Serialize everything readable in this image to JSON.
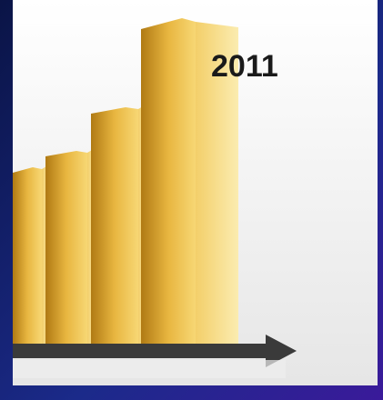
{
  "label": "2011"
}
